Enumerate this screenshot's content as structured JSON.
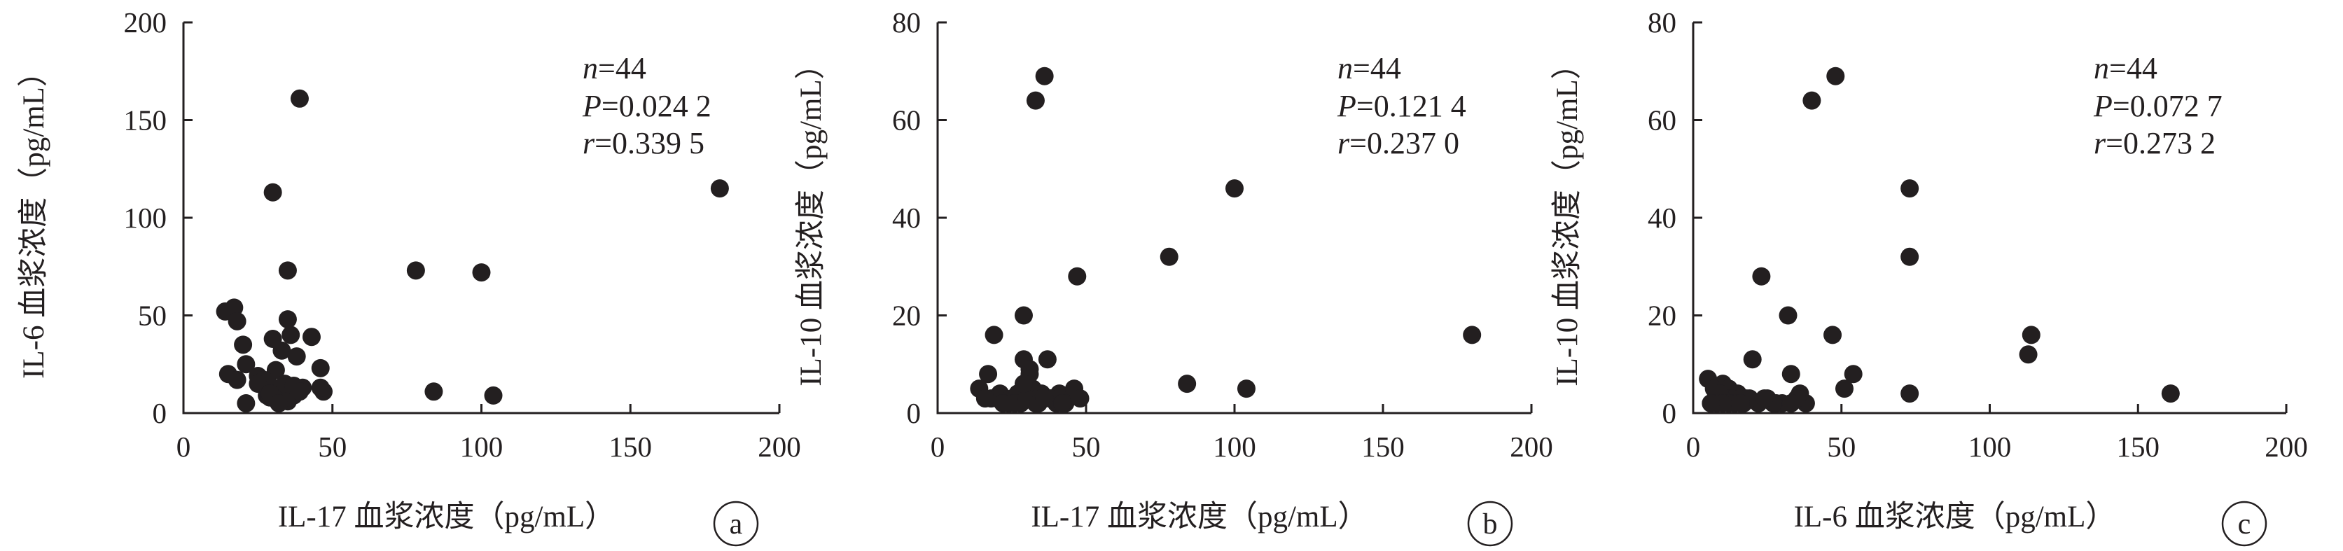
{
  "chart_data": [
    {
      "type": "scatter",
      "panel": "a",
      "xlabel": "IL-17 血浆浓度（pg/mL）",
      "ylabel": "IL-6 血浆浓度（pg/mL）",
      "xlim": [
        0,
        200
      ],
      "ylim": [
        0,
        200
      ],
      "xticks": [
        0,
        50,
        100,
        150,
        200
      ],
      "yticks": [
        0,
        50,
        100,
        150,
        200
      ],
      "annotations": {
        "n": "=44",
        "p": "=0.024 2",
        "r": "=0.339 5"
      },
      "x": [
        39,
        30,
        180,
        78,
        100,
        35,
        14,
        17,
        18,
        35,
        43,
        36,
        30,
        20,
        33,
        38,
        21,
        25,
        31,
        46,
        15,
        18,
        34,
        27,
        29,
        40,
        36,
        32,
        25,
        47,
        28,
        33,
        37,
        29,
        31,
        46,
        84,
        104,
        35,
        21,
        29,
        37,
        32,
        39
      ],
      "y": [
        161,
        113,
        115,
        73,
        72,
        73,
        52,
        54,
        47,
        48,
        39,
        40,
        38,
        35,
        32,
        29,
        25,
        19,
        22,
        23,
        20,
        17,
        15,
        17,
        14,
        13,
        12,
        10,
        15,
        11,
        9,
        13,
        9,
        8,
        7,
        13,
        11,
        9,
        6,
        5,
        10,
        14,
        5,
        11
      ]
    },
    {
      "type": "scatter",
      "panel": "b",
      "xlabel": "IL-17 血浆浓度（pg/mL）",
      "ylabel": "IL-10 血浆浓度（pg/mL）",
      "xlim": [
        0,
        200
      ],
      "ylim": [
        0,
        80
      ],
      "xticks": [
        0,
        50,
        100,
        150,
        200
      ],
      "yticks": [
        0,
        20,
        40,
        60,
        80
      ],
      "annotations": {
        "n": "=44",
        "p": "=0.121 4",
        "r": "=0.237 0"
      },
      "x": [
        36,
        33,
        100,
        78,
        47,
        29,
        180,
        19,
        29,
        37,
        31,
        17,
        84,
        104,
        14,
        21,
        22,
        25,
        27,
        30,
        32,
        35,
        38,
        41,
        46,
        18,
        20,
        24,
        28,
        33,
        35,
        40,
        43,
        48,
        16,
        22,
        26,
        30,
        34,
        38,
        42,
        31,
        36,
        29
      ],
      "y": [
        69,
        64,
        46,
        32,
        28,
        20,
        16,
        16,
        11,
        11,
        9,
        8,
        6,
        5,
        5,
        4,
        3,
        3,
        4,
        5,
        5,
        4,
        3,
        4,
        5,
        3,
        3,
        2,
        2,
        2,
        3,
        2,
        2,
        3,
        3,
        2,
        2,
        3,
        2,
        3,
        2,
        8,
        3,
        6
      ]
    },
    {
      "type": "scatter",
      "panel": "c",
      "xlabel": "IL-6 血浆浓度（pg/mL）",
      "ylabel": "IL-10 血浆浓度（pg/mL）",
      "xlim": [
        0,
        200
      ],
      "ylim": [
        0,
        80
      ],
      "xticks": [
        0,
        50,
        100,
        150,
        200
      ],
      "yticks": [
        0,
        20,
        40,
        60,
        80
      ],
      "annotations": {
        "n": "=44",
        "p": "=0.072 7",
        "r": "=0.273 2"
      },
      "x": [
        48,
        40,
        73,
        73,
        23,
        32,
        47,
        114,
        113,
        20,
        54,
        33,
        5,
        51,
        73,
        161,
        10,
        12,
        15,
        7,
        8,
        13,
        18,
        25,
        28,
        36,
        30,
        22,
        38,
        6,
        11,
        14,
        9,
        17,
        12,
        27,
        35,
        19,
        8,
        16,
        24,
        33,
        10,
        6
      ],
      "y": [
        69,
        64,
        46,
        32,
        28,
        20,
        16,
        16,
        12,
        11,
        8,
        8,
        7,
        5,
        4,
        4,
        6,
        5,
        4,
        5,
        3,
        3,
        3,
        3,
        2,
        4,
        2,
        2,
        2,
        2,
        3,
        2,
        4,
        2,
        2,
        2,
        3,
        3,
        2,
        2,
        3,
        2,
        2,
        2
      ]
    }
  ]
}
